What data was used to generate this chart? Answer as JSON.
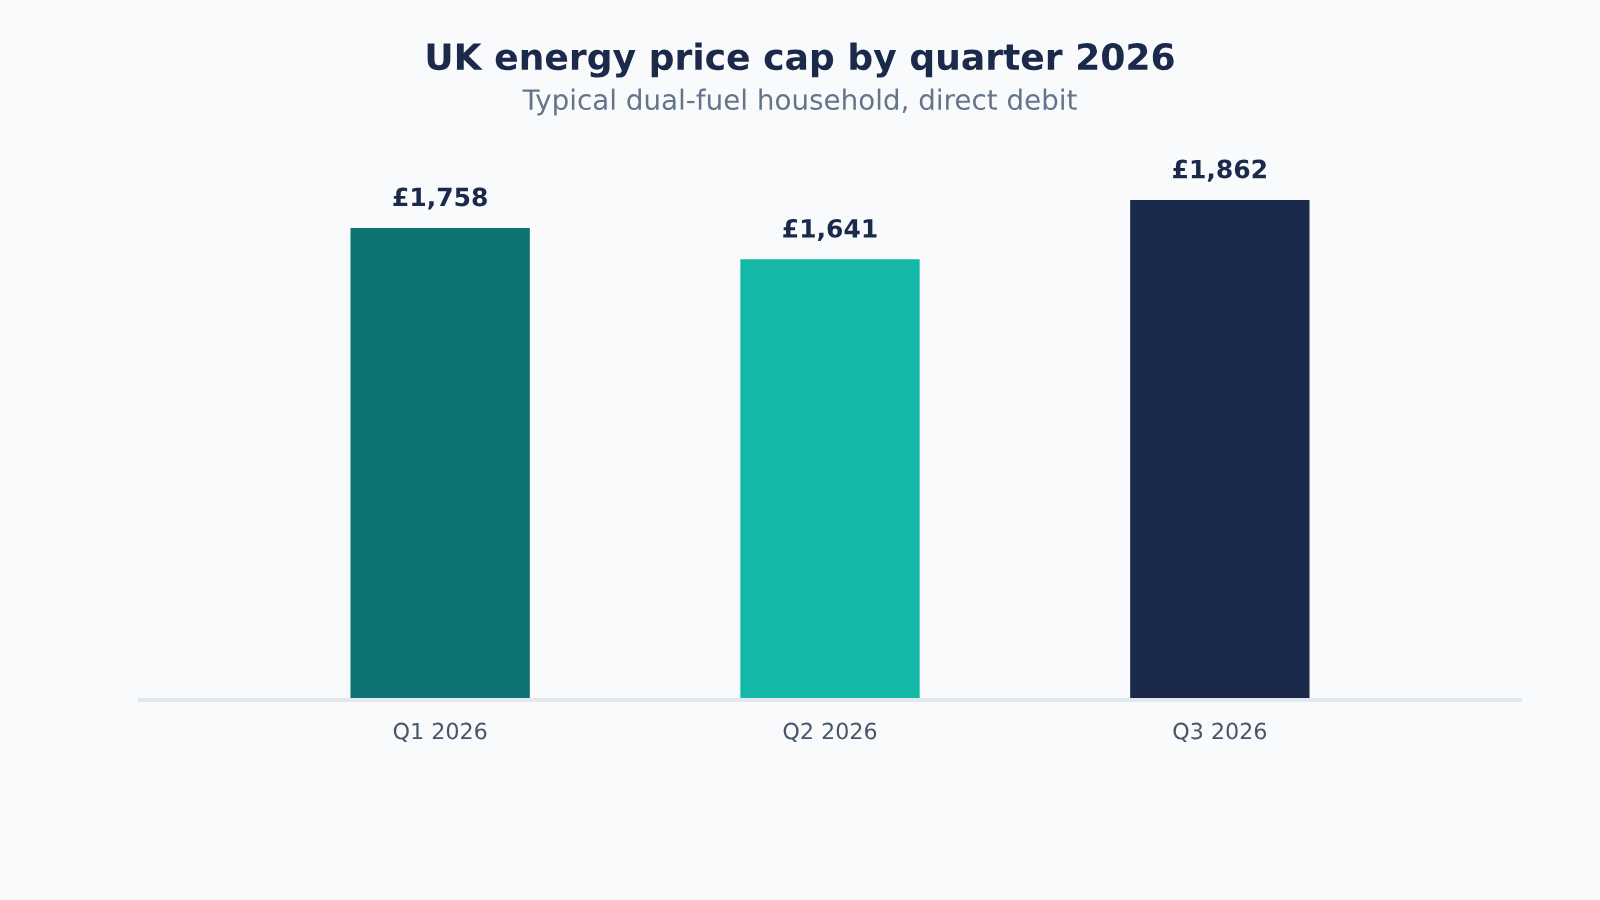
{
  "chart_data": {
    "type": "bar",
    "title": "UK energy price cap by quarter 2026",
    "subtitle": "Typical dual-fuel household, direct debit",
    "categories": [
      "Q1 2026",
      "Q2 2026",
      "Q3 2026"
    ],
    "values": [
      1758,
      1641,
      1862
    ],
    "colors": [
      "#0e7272",
      "#14b8a6",
      "#1b2a4a"
    ],
    "value_labels": [
      "£1,758",
      "£1,641",
      "£1,862"
    ]
  }
}
